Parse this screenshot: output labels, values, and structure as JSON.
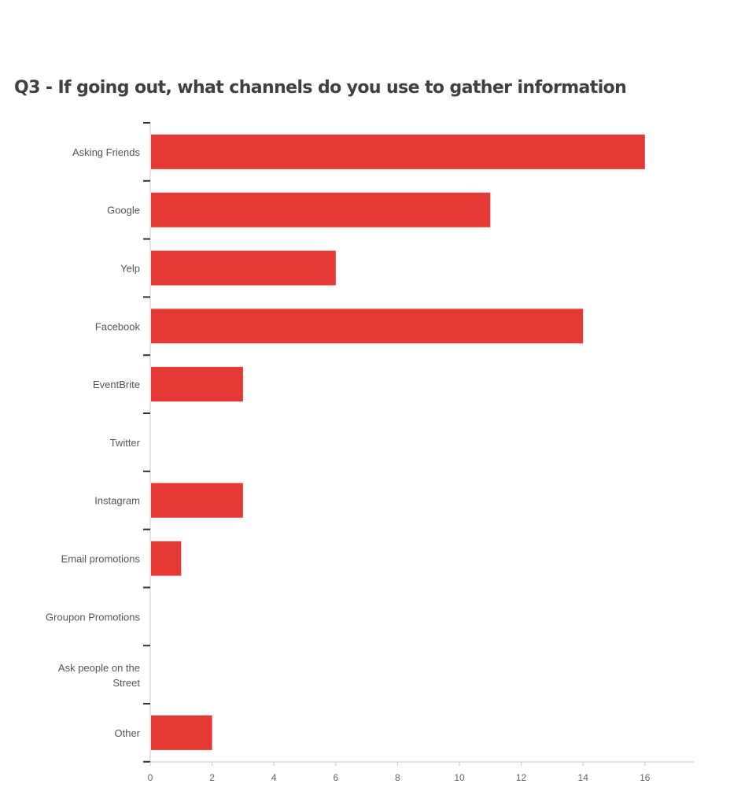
{
  "chart_data": {
    "type": "bar",
    "orientation": "horizontal",
    "title": "Q3 - If going out, what channels do you use to gather information",
    "categories": [
      "Asking Friends",
      "Google",
      "Yelp",
      "Facebook",
      "EventBrite",
      "Twitter",
      "Instagram",
      "Email promotions",
      "Groupon Promotions",
      "Ask people on the Street",
      "Other"
    ],
    "values": [
      16,
      11,
      6,
      14,
      3,
      0,
      3,
      1,
      0,
      0,
      2
    ],
    "xlim": [
      0,
      17.5
    ],
    "xticks": [
      0,
      2,
      4,
      6,
      8,
      10,
      12,
      14,
      16
    ],
    "xlabel": "",
    "ylabel": "",
    "grid": false,
    "bar_color": "#e53935"
  }
}
